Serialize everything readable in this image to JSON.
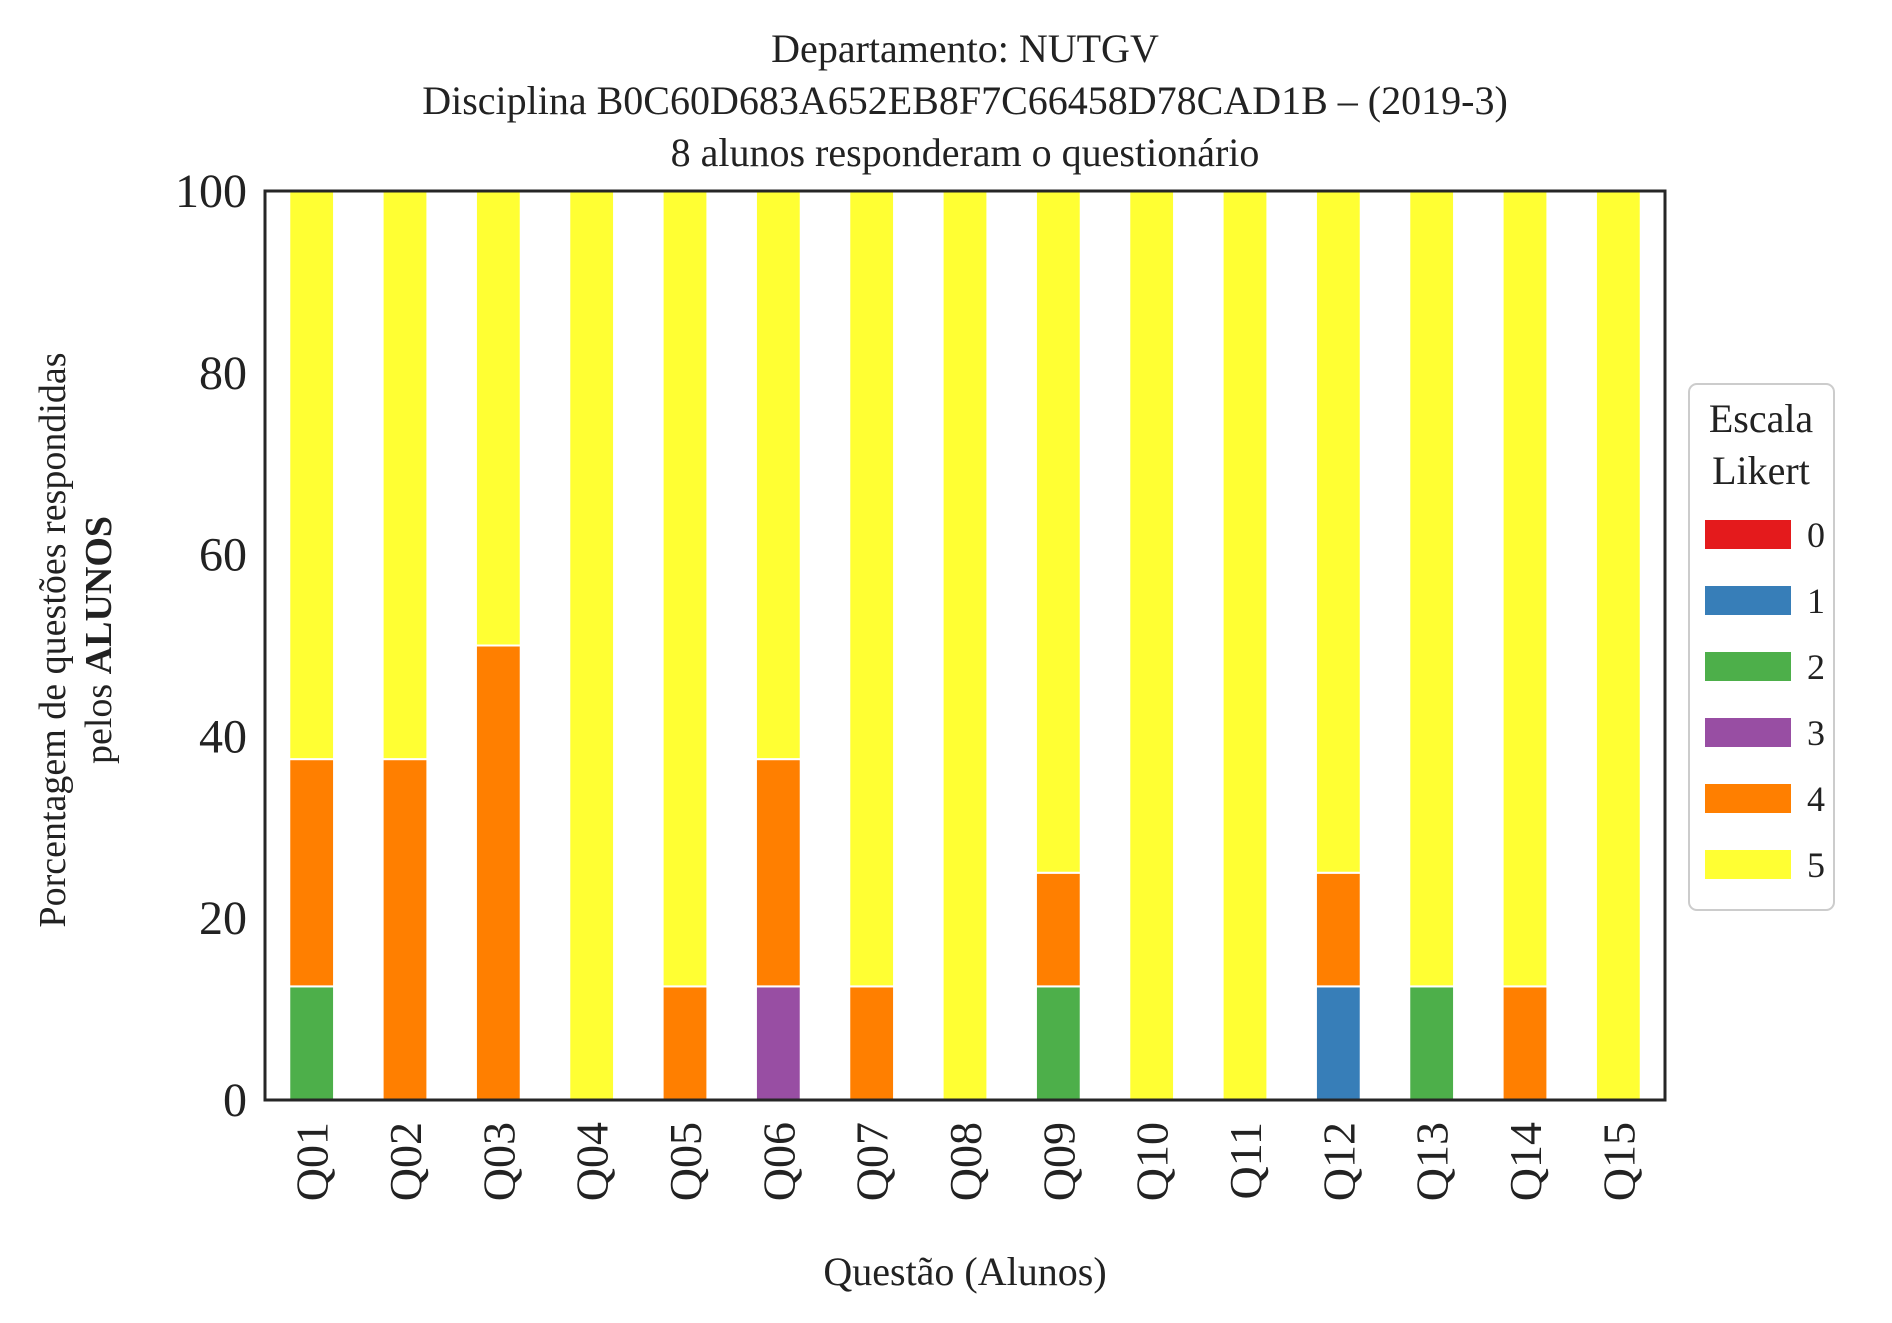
{
  "chart_data": {
    "type": "bar",
    "stacked": true,
    "title_lines": [
      "Departamento: NUTGV",
      "Disciplina B0C60D683A652EB8F7C66458D78CAD1B – (2019-3)",
      "8 alunos responderam o questionário"
    ],
    "xlabel": "Questão (Alunos)",
    "ylabel_line1": "Porcentagem de questões respondidas",
    "ylabel_line2_prefix": "pelos ",
    "ylabel_line2_bold": "ALUNOS",
    "ylim": [
      0,
      100
    ],
    "yticks": [
      "0",
      "20",
      "40",
      "60",
      "80",
      "100"
    ],
    "grid": false,
    "legend_title_lines": [
      "Escala",
      "Likert"
    ],
    "legend_position": "center-right (outside)",
    "categories": [
      "Q01",
      "Q02",
      "Q03",
      "Q04",
      "Q05",
      "Q06",
      "Q07",
      "Q08",
      "Q09",
      "Q10",
      "Q11",
      "Q12",
      "Q13",
      "Q14",
      "Q15"
    ],
    "series": [
      {
        "name": "0",
        "color": "#e41a1c",
        "values": [
          0,
          0,
          0,
          0,
          0,
          0,
          0,
          0,
          0,
          0,
          0,
          0,
          0,
          0,
          0
        ]
      },
      {
        "name": "1",
        "color": "#377eb8",
        "values": [
          0,
          0,
          0,
          0,
          0,
          0,
          0,
          0,
          0,
          0,
          0,
          12.5,
          0,
          0,
          0
        ]
      },
      {
        "name": "2",
        "color": "#4daf4a",
        "values": [
          12.5,
          0,
          0,
          0,
          0,
          0,
          0,
          0,
          12.5,
          0,
          0,
          0,
          12.5,
          0,
          0
        ]
      },
      {
        "name": "3",
        "color": "#984ea3",
        "values": [
          0,
          0,
          0,
          0,
          0,
          12.5,
          0,
          0,
          0,
          0,
          0,
          0,
          0,
          0,
          0
        ]
      },
      {
        "name": "4",
        "color": "#ff7f00",
        "values": [
          25,
          37.5,
          50,
          0,
          12.5,
          25,
          12.5,
          0,
          12.5,
          0,
          0,
          12.5,
          0,
          12.5,
          0
        ]
      },
      {
        "name": "5",
        "color": "#ffff33",
        "values": [
          62.5,
          62.5,
          50,
          100,
          87.5,
          62.5,
          87.5,
          100,
          75,
          100,
          100,
          75,
          87.5,
          87.5,
          100
        ]
      }
    ]
  }
}
